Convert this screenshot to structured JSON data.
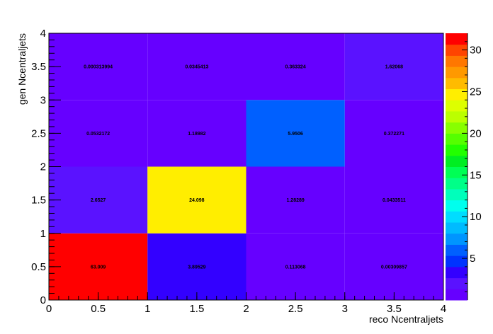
{
  "chart_data": {
    "type": "heatmap",
    "title": "",
    "xlabel": "reco Ncentraljets",
    "ylabel": "gen Ncentraljets",
    "xlim": [
      0,
      4
    ],
    "ylim": [
      0,
      4
    ],
    "x_edges": [
      0,
      1,
      2,
      3,
      4
    ],
    "y_edges": [
      0,
      1,
      2,
      3,
      4
    ],
    "x_ticks": [
      "0",
      "0.5",
      "1",
      "1.5",
      "2",
      "2.5",
      "3",
      "3.5",
      "4"
    ],
    "y_ticks": [
      "0",
      "0.5",
      "1",
      "1.5",
      "2",
      "2.5",
      "3",
      "3.5",
      "4"
    ],
    "cells": [
      {
        "x": 0.5,
        "y": 0.5,
        "value": 63.009,
        "label": "63.009"
      },
      {
        "x": 1.5,
        "y": 0.5,
        "value": 3.89529,
        "label": "3.89529"
      },
      {
        "x": 2.5,
        "y": 0.5,
        "value": 0.113068,
        "label": "0.113068"
      },
      {
        "x": 3.5,
        "y": 0.5,
        "value": 0.00309857,
        "label": "0.00309857"
      },
      {
        "x": 0.5,
        "y": 1.5,
        "value": 2.6527,
        "label": "2.6527"
      },
      {
        "x": 1.5,
        "y": 1.5,
        "value": 24.098,
        "label": "24.098"
      },
      {
        "x": 2.5,
        "y": 1.5,
        "value": 1.28289,
        "label": "1.28289"
      },
      {
        "x": 3.5,
        "y": 1.5,
        "value": 0.0433511,
        "label": "0.0433511"
      },
      {
        "x": 0.5,
        "y": 2.5,
        "value": 0.0532172,
        "label": "0.0532172"
      },
      {
        "x": 1.5,
        "y": 2.5,
        "value": 1.18982,
        "label": "1.18982"
      },
      {
        "x": 2.5,
        "y": 2.5,
        "value": 5.9506,
        "label": "5.9506"
      },
      {
        "x": 3.5,
        "y": 2.5,
        "value": 0.372271,
        "label": "0.372271"
      },
      {
        "x": 0.5,
        "y": 3.5,
        "value": 0.000313994,
        "label": "0.000313994"
      },
      {
        "x": 1.5,
        "y": 3.5,
        "value": 0.0345413,
        "label": "0.0345413"
      },
      {
        "x": 2.5,
        "y": 3.5,
        "value": 0.363324,
        "label": "0.363324"
      },
      {
        "x": 3.5,
        "y": 3.5,
        "value": 1.62068,
        "label": "1.62068"
      }
    ],
    "colorbar": {
      "zlim": [
        0,
        32
      ],
      "ticks": [
        "5",
        "10",
        "15",
        "20",
        "25",
        "30"
      ],
      "tick_values": [
        5,
        10,
        15,
        20,
        25,
        30
      ],
      "palette": [
        "#6600ff",
        "#5a12ff",
        "#3300ff",
        "#0033ff",
        "#0060ff",
        "#0095ff",
        "#00bbff",
        "#00ddff",
        "#00ffee",
        "#00ffbb",
        "#00ff88",
        "#00ff55",
        "#00ee22",
        "#22ff00",
        "#55ff00",
        "#88ff00",
        "#bbff00",
        "#ddff00",
        "#ffee00",
        "#ffbb00",
        "#ff9900",
        "#ff7700",
        "#ff4400",
        "#ff0000"
      ]
    },
    "grid": false,
    "legend": "none"
  }
}
